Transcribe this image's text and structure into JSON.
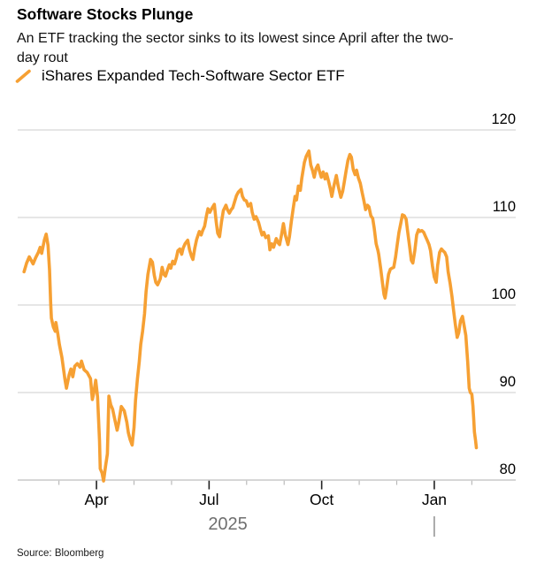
{
  "header": {
    "title": "Software Stocks Plunge",
    "subtitle": "An ETF tracking the sector sinks to its lowest since April after the two-day rout"
  },
  "legend": {
    "series_label": "iShares Expanded Tech-Software Sector ETF"
  },
  "source_note": "Source: Bloomberg",
  "colors": {
    "line": "#F6A033",
    "grid": "#D6D6D6",
    "axis": "#C9C9C9",
    "minor_tick": "#B5B5B5",
    "major_tick": "#222222",
    "tick_label": "#000000",
    "year_label": "#6F6F6F",
    "year_divider": "#8F8F8F"
  },
  "chart_data": {
    "type": "line",
    "title": "Software Stocks Plunge",
    "series_name": "iShares Expanded Tech-Software Sector ETF",
    "x_unit": "months_since_2025-02-01",
    "x_range_description": "mid-February 2025 through early-February 2026",
    "grid": true,
    "legend_position": "top-left",
    "yticks": [
      120,
      110,
      100,
      90,
      80
    ],
    "ylim": [
      80,
      120
    ],
    "month_ticks": [
      {
        "m": 1,
        "label": ""
      },
      {
        "m": 2,
        "label": "Apr",
        "major": true
      },
      {
        "m": 3,
        "label": ""
      },
      {
        "m": 4,
        "label": ""
      },
      {
        "m": 5,
        "label": "Jul",
        "major": true
      },
      {
        "m": 6,
        "label": ""
      },
      {
        "m": 7,
        "label": ""
      },
      {
        "m": 8,
        "label": "Oct",
        "major": true
      },
      {
        "m": 9,
        "label": ""
      },
      {
        "m": 10,
        "label": ""
      },
      {
        "m": 11,
        "label": "Jan",
        "major": true
      },
      {
        "m": 12,
        "label": ""
      }
    ],
    "year_label": "2025",
    "year_label_m": 5.5,
    "year_divider_m": 11,
    "points": [
      [
        0.07,
        103.8
      ],
      [
        0.14,
        104.8
      ],
      [
        0.21,
        105.5
      ],
      [
        0.31,
        104.7
      ],
      [
        0.38,
        105.4
      ],
      [
        0.45,
        106.0
      ],
      [
        0.5,
        106.6
      ],
      [
        0.54,
        105.9
      ],
      [
        0.61,
        107.4
      ],
      [
        0.66,
        108.1
      ],
      [
        0.71,
        106.8
      ],
      [
        0.75,
        104.0
      ],
      [
        0.78,
        100.2
      ],
      [
        0.8,
        98.5
      ],
      [
        0.85,
        97.5
      ],
      [
        0.9,
        97.0
      ],
      [
        0.92,
        98.0
      ],
      [
        0.97,
        96.7
      ],
      [
        1.01,
        95.5
      ],
      [
        1.08,
        94.0
      ],
      [
        1.16,
        91.5
      ],
      [
        1.2,
        90.5
      ],
      [
        1.27,
        92.0
      ],
      [
        1.32,
        92.7
      ],
      [
        1.37,
        91.8
      ],
      [
        1.42,
        93.0
      ],
      [
        1.49,
        93.3
      ],
      [
        1.56,
        92.9
      ],
      [
        1.6,
        93.6
      ],
      [
        1.67,
        92.6
      ],
      [
        1.75,
        92.3
      ],
      [
        1.84,
        91.6
      ],
      [
        1.89,
        89.2
      ],
      [
        1.93,
        90.0
      ],
      [
        1.98,
        91.4
      ],
      [
        2.03,
        89.5
      ],
      [
        2.08,
        84.5
      ],
      [
        2.1,
        81.3
      ],
      [
        2.15,
        80.8
      ],
      [
        2.19,
        79.9
      ],
      [
        2.24,
        81.5
      ],
      [
        2.29,
        83.0
      ],
      [
        2.33,
        89.6
      ],
      [
        2.38,
        88.6
      ],
      [
        2.43,
        88.1
      ],
      [
        2.48,
        87.1
      ],
      [
        2.55,
        85.7
      ],
      [
        2.59,
        86.5
      ],
      [
        2.66,
        88.4
      ],
      [
        2.74,
        87.9
      ],
      [
        2.81,
        86.6
      ],
      [
        2.85,
        85.4
      ],
      [
        2.9,
        84.6
      ],
      [
        2.95,
        84.0
      ],
      [
        3.0,
        86.0
      ],
      [
        3.04,
        89.1
      ],
      [
        3.09,
        91.5
      ],
      [
        3.14,
        93.5
      ],
      [
        3.18,
        95.5
      ],
      [
        3.23,
        97.0
      ],
      [
        3.28,
        99.0
      ],
      [
        3.32,
        101.5
      ],
      [
        3.37,
        103.5
      ],
      [
        3.44,
        105.2
      ],
      [
        3.49,
        104.9
      ],
      [
        3.54,
        103.4
      ],
      [
        3.58,
        102.6
      ],
      [
        3.63,
        102.3
      ],
      [
        3.7,
        103.0
      ],
      [
        3.75,
        104.3
      ],
      [
        3.8,
        103.5
      ],
      [
        3.84,
        103.3
      ],
      [
        3.89,
        104.0
      ],
      [
        3.94,
        104.6
      ],
      [
        3.98,
        104.2
      ],
      [
        4.03,
        105.0
      ],
      [
        4.08,
        104.7
      ],
      [
        4.13,
        105.4
      ],
      [
        4.17,
        106.2
      ],
      [
        4.22,
        106.4
      ],
      [
        4.27,
        105.8
      ],
      [
        4.31,
        106.5
      ],
      [
        4.36,
        107.0
      ],
      [
        4.43,
        107.4
      ],
      [
        4.48,
        106.3
      ],
      [
        4.53,
        105.6
      ],
      [
        4.57,
        105.2
      ],
      [
        4.62,
        106.5
      ],
      [
        4.67,
        107.5
      ],
      [
        4.74,
        108.4
      ],
      [
        4.79,
        108.0
      ],
      [
        4.83,
        108.5
      ],
      [
        4.88,
        109.0
      ],
      [
        4.93,
        110.2
      ],
      [
        4.97,
        111.0
      ],
      [
        5.02,
        110.6
      ],
      [
        5.07,
        111.0
      ],
      [
        5.14,
        111.5
      ],
      [
        5.19,
        109.5
      ],
      [
        5.23,
        108.2
      ],
      [
        5.28,
        107.8
      ],
      [
        5.33,
        109.5
      ],
      [
        5.38,
        110.8
      ],
      [
        5.45,
        111.4
      ],
      [
        5.49,
        110.9
      ],
      [
        5.54,
        110.5
      ],
      [
        5.59,
        110.9
      ],
      [
        5.63,
        111.1
      ],
      [
        5.68,
        111.8
      ],
      [
        5.73,
        112.5
      ],
      [
        5.78,
        112.9
      ],
      [
        5.85,
        113.2
      ],
      [
        5.89,
        112.4
      ],
      [
        5.94,
        112.0
      ],
      [
        5.99,
        111.9
      ],
      [
        6.04,
        111.3
      ],
      [
        6.11,
        111.6
      ],
      [
        6.15,
        110.6
      ],
      [
        6.2,
        109.8
      ],
      [
        6.25,
        110.1
      ],
      [
        6.32,
        109.4
      ],
      [
        6.37,
        108.6
      ],
      [
        6.41,
        108.0
      ],
      [
        6.46,
        108.3
      ],
      [
        6.51,
        107.7
      ],
      [
        6.58,
        107.9
      ],
      [
        6.62,
        106.3
      ],
      [
        6.67,
        107.0
      ],
      [
        6.72,
        106.6
      ],
      [
        6.79,
        107.6
      ],
      [
        6.84,
        107.1
      ],
      [
        6.88,
        106.9
      ],
      [
        6.93,
        108.0
      ],
      [
        6.98,
        109.3
      ],
      [
        7.03,
        108.0
      ],
      [
        7.1,
        106.9
      ],
      [
        7.14,
        107.8
      ],
      [
        7.19,
        109.5
      ],
      [
        7.24,
        111.0
      ],
      [
        7.29,
        112.4
      ],
      [
        7.33,
        112.0
      ],
      [
        7.38,
        113.6
      ],
      [
        7.43,
        113.1
      ],
      [
        7.47,
        114.5
      ],
      [
        7.54,
        116.3
      ],
      [
        7.59,
        117.0
      ],
      [
        7.66,
        117.6
      ],
      [
        7.71,
        116.0
      ],
      [
        7.76,
        115.3
      ],
      [
        7.8,
        114.6
      ],
      [
        7.85,
        115.6
      ],
      [
        7.9,
        116.0
      ],
      [
        7.94,
        115.3
      ],
      [
        7.99,
        114.6
      ],
      [
        8.04,
        115.2
      ],
      [
        8.09,
        114.4
      ],
      [
        8.13,
        115.0
      ],
      [
        8.18,
        114.2
      ],
      [
        8.23,
        113.3
      ],
      [
        8.27,
        112.4
      ],
      [
        8.32,
        113.5
      ],
      [
        8.39,
        114.8
      ],
      [
        8.44,
        113.6
      ],
      [
        8.51,
        112.3
      ],
      [
        8.56,
        113.0
      ],
      [
        8.6,
        114.0
      ],
      [
        8.65,
        115.3
      ],
      [
        8.7,
        116.5
      ],
      [
        8.75,
        117.2
      ],
      [
        8.79,
        116.9
      ],
      [
        8.84,
        115.5
      ],
      [
        8.89,
        114.9
      ],
      [
        8.93,
        115.4
      ],
      [
        8.98,
        114.5
      ],
      [
        9.03,
        113.9
      ],
      [
        9.08,
        112.8
      ],
      [
        9.12,
        112.0
      ],
      [
        9.17,
        110.9
      ],
      [
        9.22,
        111.4
      ],
      [
        9.26,
        111.2
      ],
      [
        9.31,
        110.2
      ],
      [
        9.36,
        109.9
      ],
      [
        9.4,
        108.8
      ],
      [
        9.45,
        107.0
      ],
      [
        9.5,
        106.2
      ],
      [
        9.52,
        105.8
      ],
      [
        9.57,
        104.2
      ],
      [
        9.62,
        102.5
      ],
      [
        9.66,
        101.2
      ],
      [
        9.69,
        100.8
      ],
      [
        9.73,
        101.9
      ],
      [
        9.78,
        103.5
      ],
      [
        9.83,
        104.1
      ],
      [
        9.87,
        104.2
      ],
      [
        9.92,
        104.3
      ],
      [
        9.97,
        105.5
      ],
      [
        10.01,
        106.8
      ],
      [
        10.06,
        108.3
      ],
      [
        10.11,
        109.4
      ],
      [
        10.15,
        110.3
      ],
      [
        10.2,
        110.2
      ],
      [
        10.25,
        109.8
      ],
      [
        10.29,
        108.4
      ],
      [
        10.34,
        106.8
      ],
      [
        10.39,
        105.1
      ],
      [
        10.43,
        104.8
      ],
      [
        10.48,
        106.2
      ],
      [
        10.53,
        108.0
      ],
      [
        10.58,
        108.6
      ],
      [
        10.62,
        108.4
      ],
      [
        10.67,
        108.5
      ],
      [
        10.72,
        108.3
      ],
      [
        10.76,
        107.9
      ],
      [
        10.81,
        107.4
      ],
      [
        10.86,
        106.9
      ],
      [
        10.9,
        106.2
      ],
      [
        10.95,
        104.5
      ],
      [
        11.0,
        103.2
      ],
      [
        11.05,
        102.6
      ],
      [
        11.09,
        104.5
      ],
      [
        11.14,
        106.0
      ],
      [
        11.19,
        106.4
      ],
      [
        11.23,
        106.2
      ],
      [
        11.28,
        106.0
      ],
      [
        11.33,
        105.5
      ],
      [
        11.37,
        103.8
      ],
      [
        11.42,
        102.5
      ],
      [
        11.47,
        101.0
      ],
      [
        11.51,
        99.5
      ],
      [
        11.56,
        97.8
      ],
      [
        11.61,
        96.3
      ],
      [
        11.65,
        96.8
      ],
      [
        11.7,
        98.2
      ],
      [
        11.75,
        98.7
      ],
      [
        11.79,
        97.8
      ],
      [
        11.84,
        96.5
      ],
      [
        11.89,
        93.5
      ],
      [
        11.93,
        90.5
      ],
      [
        11.96,
        90.0
      ],
      [
        12.0,
        89.8
      ],
      [
        12.03,
        88.5
      ],
      [
        12.05,
        87.0
      ],
      [
        12.07,
        85.5
      ],
      [
        12.1,
        84.5
      ],
      [
        12.12,
        83.7
      ]
    ]
  }
}
